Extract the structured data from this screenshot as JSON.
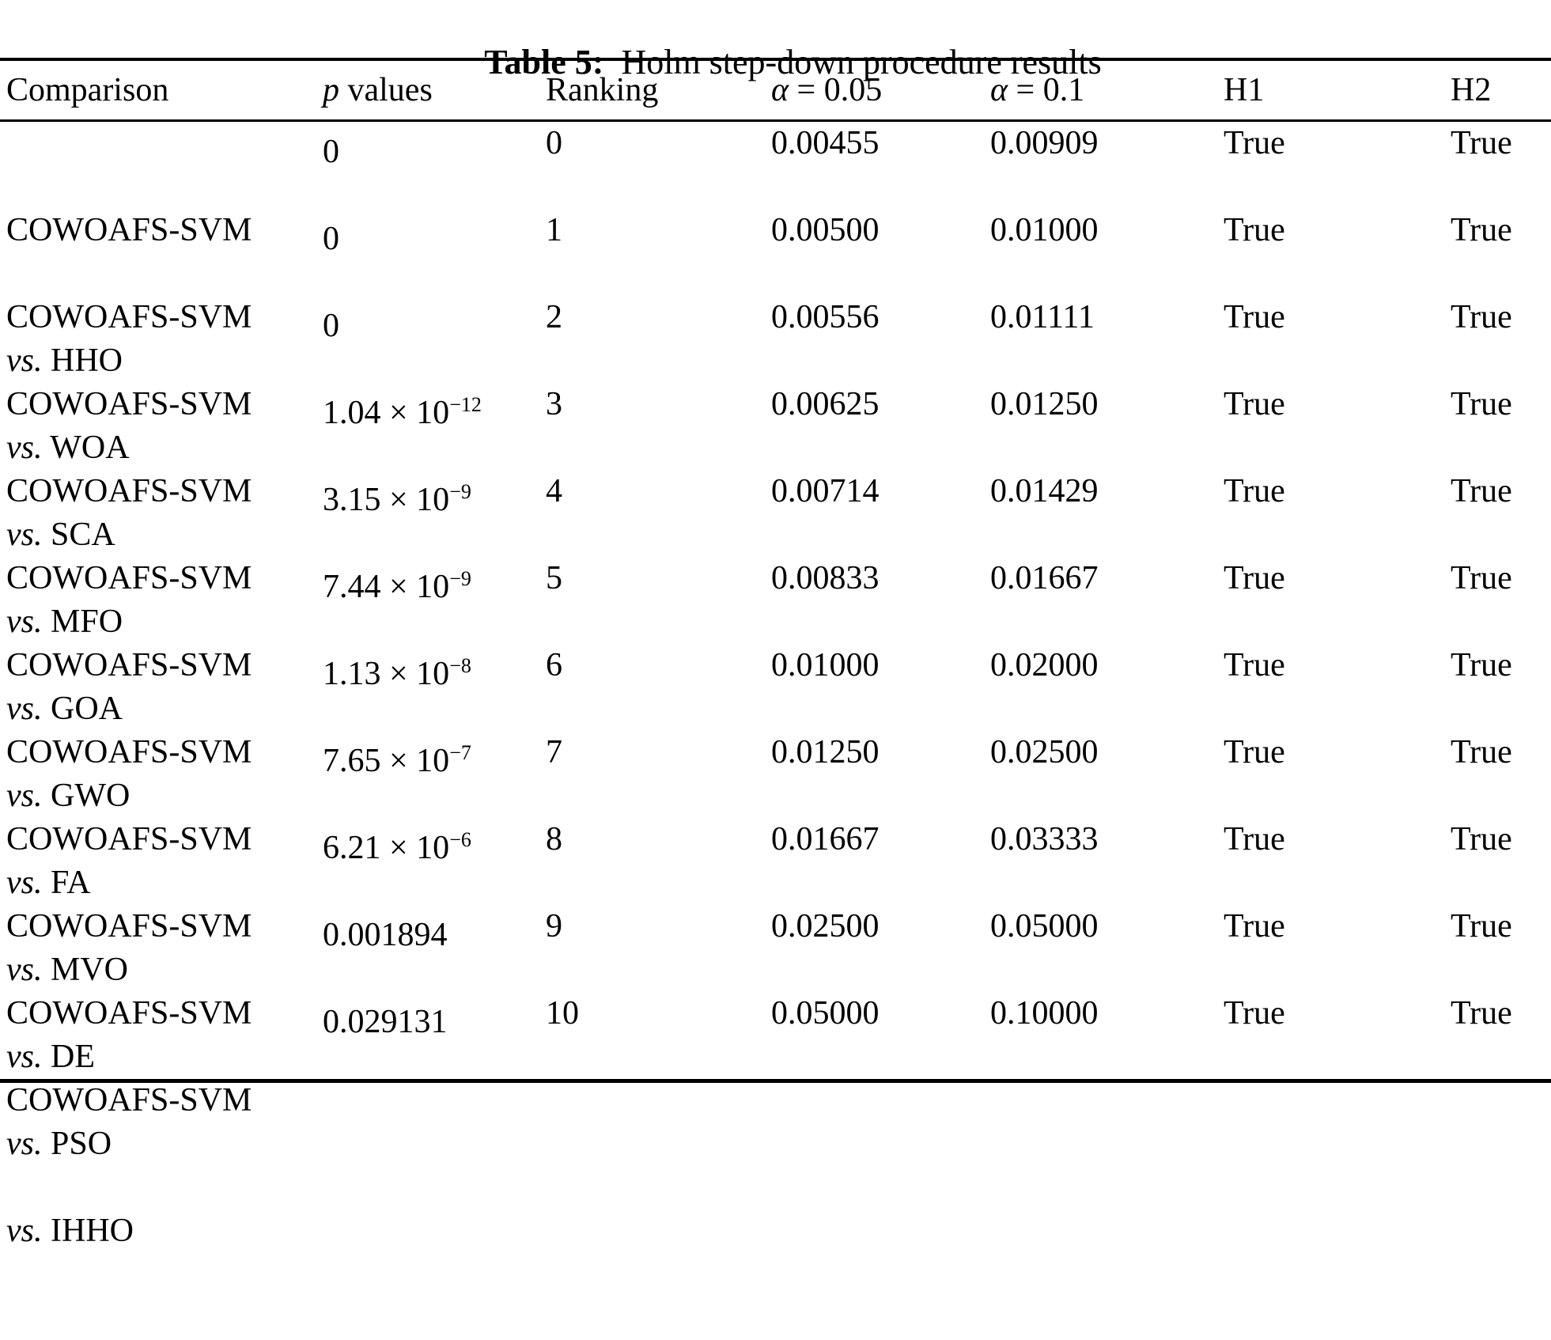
{
  "colors": {
    "text": "#000000",
    "background": "#ffffff"
  },
  "title": {
    "label": "Table 5:",
    "text": "  Holm step-down procedure results"
  },
  "table": {
    "header": {
      "comparison": "Comparison",
      "p_italic": "p",
      "p_rest": " values",
      "ranking": "Ranking",
      "alpha_005_sym": "α",
      "alpha_005_rest": " = 0.05",
      "alpha_01_sym": "α",
      "alpha_01_rest": " = 0.1",
      "h1": "H1",
      "h2": "H2"
    },
    "rows": [
      {
        "algo": "COWOAFS-SVM",
        "vs_label": "vs.",
        "opponent": "HHO",
        "p_text": "0",
        "p_sup": "",
        "ranking": "0",
        "alpha_005": "0.00455",
        "alpha_01": "0.00909",
        "h1": "True",
        "h2": "True"
      },
      {
        "algo": "COWOAFS-SVM",
        "vs_label": "vs.",
        "opponent": "WOA",
        "p_text": "0",
        "p_sup": "",
        "ranking": "1",
        "alpha_005": "0.00500",
        "alpha_01": "0.01000",
        "h1": "True",
        "h2": "True"
      },
      {
        "algo": "COWOAFS-SVM",
        "vs_label": "vs.",
        "opponent": "SCA",
        "p_text": "0",
        "p_sup": "",
        "ranking": "2",
        "alpha_005": "0.00556",
        "alpha_01": "0.01111",
        "h1": "True",
        "h2": "True"
      },
      {
        "algo": "COWOAFS-SVM",
        "vs_label": "vs.",
        "opponent": "MFO",
        "p_text": "1.04 × 10",
        "p_sup": "−12",
        "ranking": "3",
        "alpha_005": "0.00625",
        "alpha_01": "0.01250",
        "h1": "True",
        "h2": "True"
      },
      {
        "algo": "COWOAFS-SVM",
        "vs_label": "vs.",
        "opponent": "GOA",
        "p_text": "3.15 × 10",
        "p_sup": "−9",
        "ranking": "4",
        "alpha_005": "0.00714",
        "alpha_01": "0.01429",
        "h1": "True",
        "h2": "True"
      },
      {
        "algo": "COWOAFS-SVM",
        "vs_label": "vs.",
        "opponent": "GWO",
        "p_text": "7.44 × 10",
        "p_sup": "−9",
        "ranking": "5",
        "alpha_005": "0.00833",
        "alpha_01": "0.01667",
        "h1": "True",
        "h2": "True"
      },
      {
        "algo": "COWOAFS-SVM",
        "vs_label": "vs.",
        "opponent": "FA",
        "p_text": "1.13 × 10",
        "p_sup": "−8",
        "ranking": "6",
        "alpha_005": "0.01000",
        "alpha_01": "0.02000",
        "h1": "True",
        "h2": "True"
      },
      {
        "algo": "COWOAFS-SVM",
        "vs_label": "vs.",
        "opponent": "MVO",
        "p_text": "7.65 × 10",
        "p_sup": "−7",
        "ranking": "7",
        "alpha_005": "0.01250",
        "alpha_01": "0.02500",
        "h1": "True",
        "h2": "True"
      },
      {
        "algo": "COWOAFS-SVM",
        "vs_label": "vs.",
        "opponent": "DE",
        "p_text": "6.21 × 10",
        "p_sup": "−6",
        "ranking": "8",
        "alpha_005": "0.01667",
        "alpha_01": "0.03333",
        "h1": "True",
        "h2": "True"
      },
      {
        "algo": "COWOAFS-SVM",
        "vs_label": "vs.",
        "opponent": "PSO",
        "p_text": "0.001894",
        "p_sup": "",
        "ranking": "9",
        "alpha_005": "0.02500",
        "alpha_01": "0.05000",
        "h1": "True",
        "h2": "True"
      },
      {
        "algo": "COWOAFS-SVM",
        "vs_label": "vs.",
        "opponent": "IHHO",
        "p_text": "0.029131",
        "p_sup": "",
        "ranking": "10",
        "alpha_005": "0.05000",
        "alpha_01": "0.10000",
        "h1": "True",
        "h2": "True"
      }
    ]
  }
}
